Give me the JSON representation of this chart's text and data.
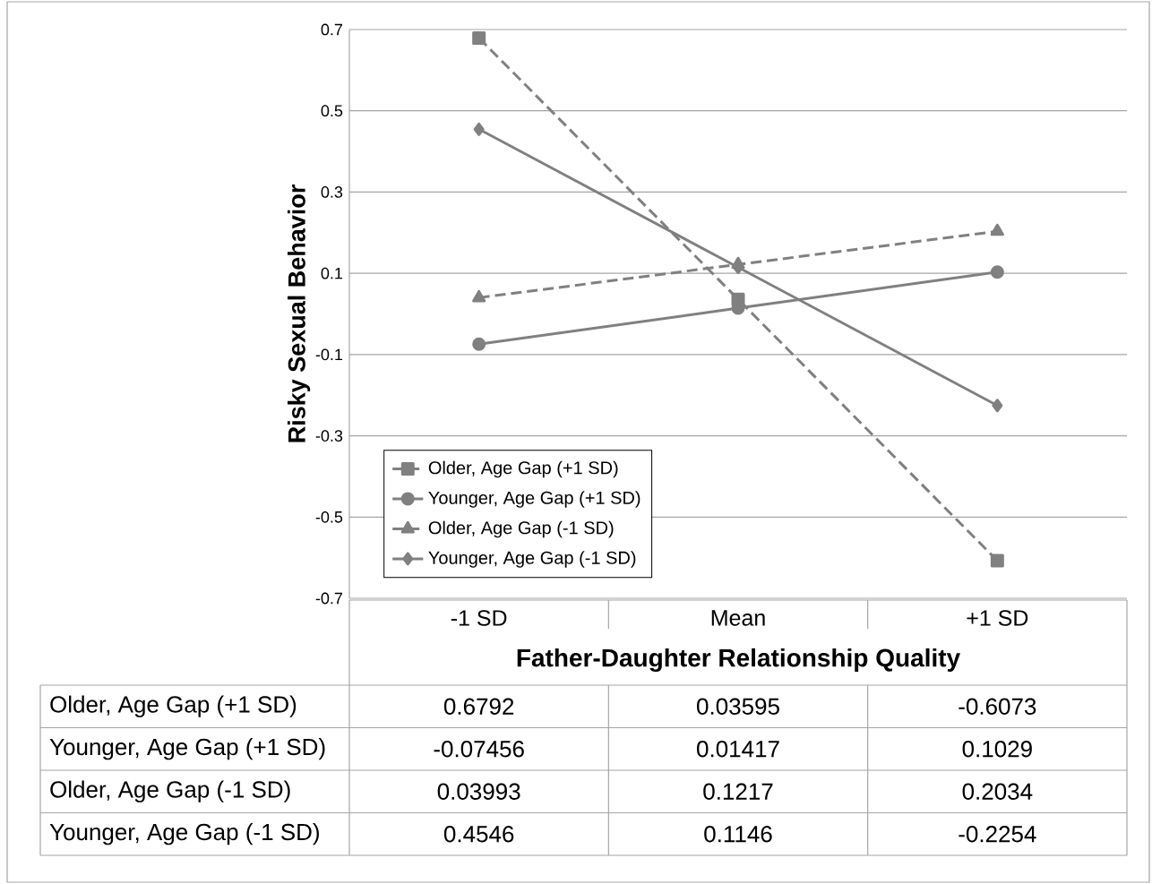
{
  "chart_data": {
    "type": "line",
    "xlabel": "Father-Daughter Relationship Quality",
    "ylabel": "Risky Sexual Behavior",
    "categories": [
      "-1 SD",
      "Mean",
      "+1 SD"
    ],
    "series": [
      {
        "name": "Older, Age Gap (+1 SD)",
        "color": "#808080",
        "marker": "square",
        "line_style": "dashed",
        "values": [
          0.6792,
          0.03595,
          -0.6073
        ]
      },
      {
        "name": "Younger, Age Gap (+1 SD)",
        "color": "#808080",
        "marker": "circle",
        "line_style": "solid",
        "values": [
          -0.07456,
          0.01417,
          0.1029
        ]
      },
      {
        "name": "Older, Age Gap (-1 SD)",
        "color": "#808080",
        "marker": "triangle",
        "line_style": "dashed",
        "values": [
          0.03993,
          0.1217,
          0.2034
        ]
      },
      {
        "name": "Younger, Age Gap (-1 SD)",
        "color": "#808080",
        "marker": "diamond",
        "line_style": "solid",
        "values": [
          0.4546,
          0.1146,
          -0.2254
        ]
      }
    ],
    "ylim": [
      -0.7,
      0.7
    ],
    "yticks": [
      -0.7,
      -0.5,
      -0.3,
      -0.1,
      0.1,
      0.3,
      0.5,
      0.7
    ],
    "grid": "y",
    "legend": "bottom left",
    "data_labels": true
  }
}
